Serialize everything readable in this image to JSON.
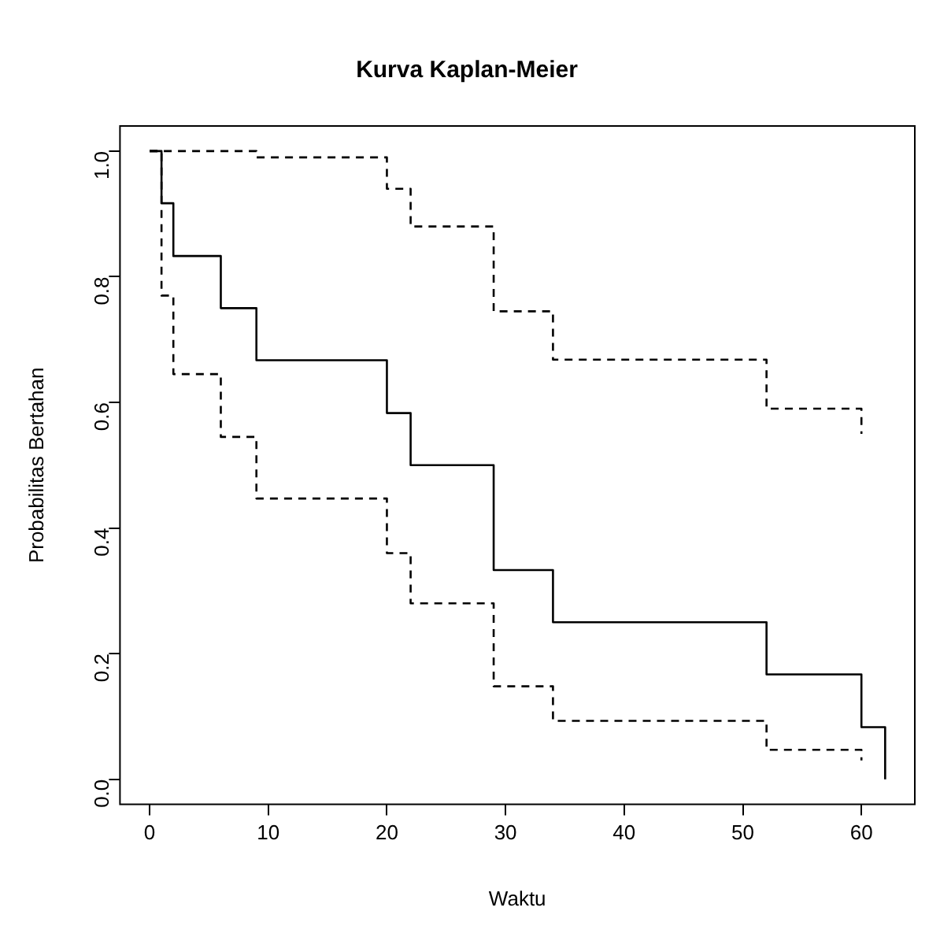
{
  "chart_data": {
    "type": "step",
    "title": "Kurva Kaplan-Meier",
    "xlabel": "Waktu",
    "ylabel": "Probabilitas Bertahan",
    "xlim": [
      -2.5,
      64.5
    ],
    "ylim": [
      -0.04,
      1.04
    ],
    "xticks": [
      0,
      10,
      20,
      30,
      40,
      50,
      60
    ],
    "yticks": [
      {
        "value": 0,
        "label": "0.0"
      },
      {
        "value": 0.2,
        "label": "0.2"
      },
      {
        "value": 0.4,
        "label": "0.4"
      },
      {
        "value": 0.6,
        "label": "0.6"
      },
      {
        "value": 0.8,
        "label": "0.8"
      },
      {
        "value": 1,
        "label": "1.0"
      }
    ],
    "series": [
      {
        "color": "#000000",
        "line_style": "solid",
        "x": [
          0,
          1,
          2,
          6,
          9,
          20,
          22,
          29,
          34,
          52,
          60,
          62
        ],
        "values": [
          1,
          0.917,
          0.833,
          0.75,
          0.667,
          0.583,
          0.5,
          0.333,
          0.25,
          0.167,
          0.083,
          0
        ]
      },
      {
        "color": "#000000",
        "line_style": "dashed",
        "x": [
          0,
          9,
          20,
          22,
          29,
          34,
          52,
          60
        ],
        "values": [
          1,
          0.99,
          0.94,
          0.88,
          0.745,
          0.668,
          0.59,
          0.55
        ]
      },
      {
        "color": "#000000",
        "line_style": "dashed",
        "x": [
          0,
          1,
          2,
          6,
          9,
          20,
          22,
          29,
          34,
          52,
          60
        ],
        "values": [
          1,
          0.77,
          0.645,
          0.545,
          0.447,
          0.36,
          0.28,
          0.148,
          0.093,
          0.047,
          0.03
        ]
      }
    ]
  }
}
